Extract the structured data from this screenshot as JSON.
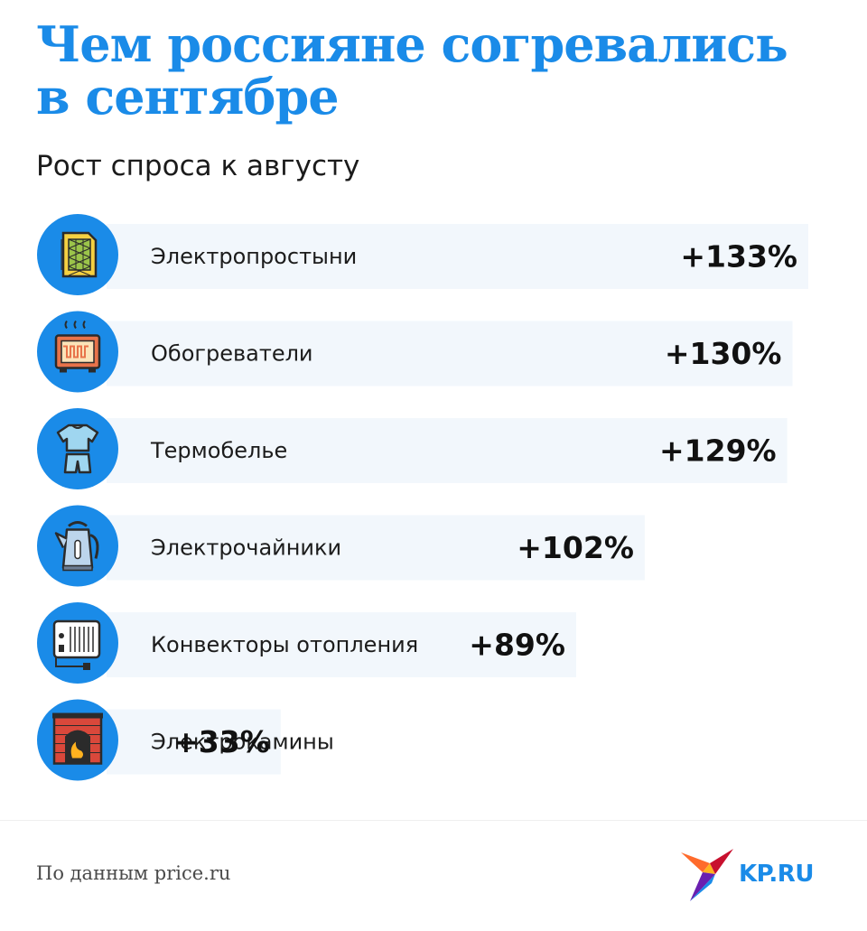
{
  "header": {
    "title": "Чем россияне согревались\nв сентябре",
    "subtitle": "Рост спроса к августу"
  },
  "footer": {
    "source": "По данным price.ru",
    "logo_text": "KP.RU"
  },
  "colors": {
    "accent": "#1a8be8",
    "bar": "#f2f7fc",
    "icon_circle": "#1a8be8"
  },
  "chart_data": {
    "type": "bar",
    "orientation": "horizontal",
    "title": "Чем россияне согревались в сентябре",
    "subtitle": "Рост спроса к августу",
    "categories": [
      "Электропростыни",
      "Обогреватели",
      "Термобелье",
      "Электрочайники",
      "Конвекторы отопления",
      "Электрокамины"
    ],
    "values": [
      133,
      130,
      129,
      102,
      89,
      33
    ],
    "labels": [
      "+133%",
      "+130%",
      "+129%",
      "+102%",
      "+89%",
      "+33%"
    ],
    "icons": [
      "heated-sheet-icon",
      "heater-icon",
      "thermal-underwear-icon",
      "kettle-icon",
      "convector-icon",
      "fireplace-icon"
    ],
    "unit": "%",
    "grid": false,
    "legend": "none"
  }
}
